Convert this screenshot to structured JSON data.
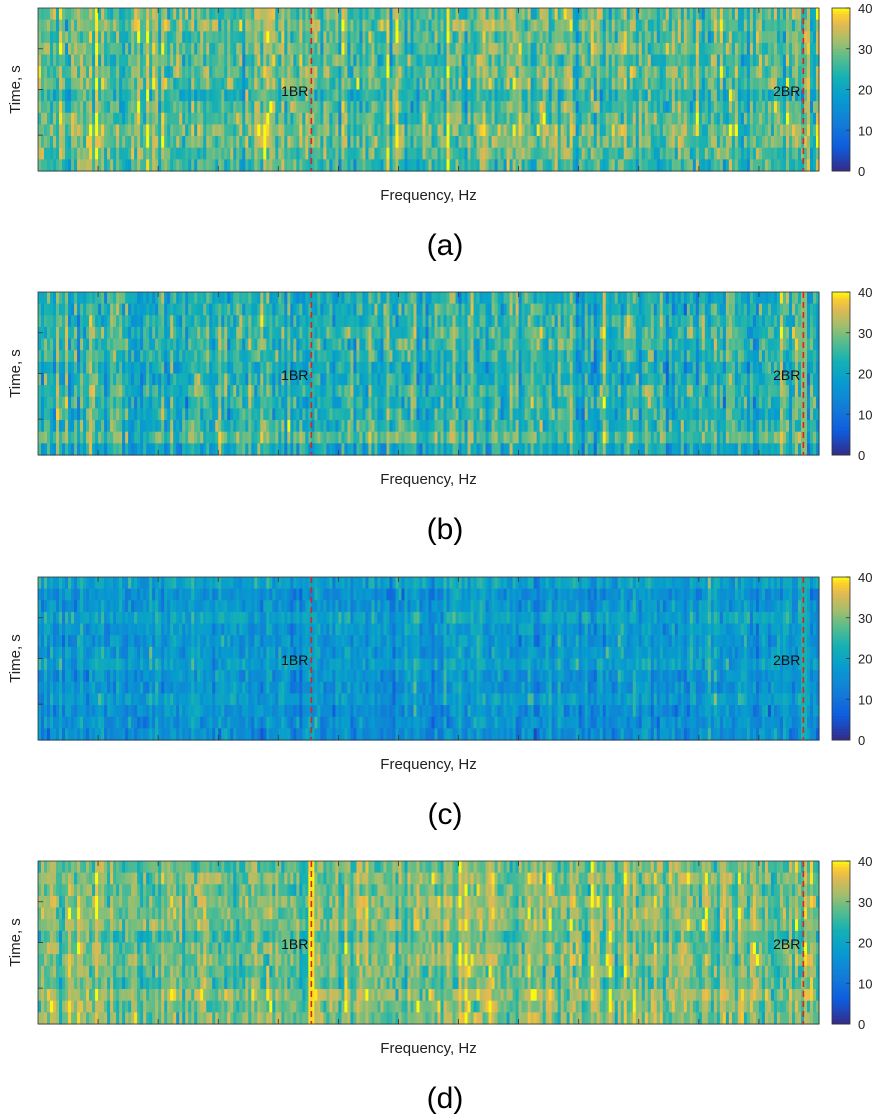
{
  "chart_data": [
    {
      "type": "heatmap",
      "panel": "(a)",
      "xlabel": "Frequency, Hz",
      "ylabel": "Time, s",
      "colorbar": {
        "ticks": [
          0,
          10,
          20,
          30,
          40
        ],
        "clim": [
          0,
          40
        ]
      },
      "markers": [
        {
          "label": "1BR",
          "position": 0.35
        },
        {
          "label": "2BR",
          "position": 0.98
        }
      ],
      "mean_level": 27,
      "spread": 6,
      "dominant_harmonic": {
        "marker": "1BR",
        "peak_level": null
      }
    },
    {
      "type": "heatmap",
      "panel": "(b)",
      "xlabel": "Frequency, Hz",
      "ylabel": "Time, s",
      "colorbar": {
        "ticks": [
          0,
          10,
          20,
          30,
          40
        ],
        "clim": [
          0,
          40
        ]
      },
      "markers": [
        {
          "label": "1BR",
          "position": 0.35
        },
        {
          "label": "2BR",
          "position": 0.98
        }
      ],
      "mean_level": 24,
      "spread": 6,
      "dominant_harmonic": {
        "marker": "2BR",
        "peak_level": 31
      }
    },
    {
      "type": "heatmap",
      "panel": "(c)",
      "xlabel": "Frequency, Hz",
      "ylabel": "Time, s",
      "colorbar": {
        "ticks": [
          0,
          10,
          20,
          30,
          40
        ],
        "clim": [
          0,
          40
        ]
      },
      "markers": [
        {
          "label": "1BR",
          "position": 0.35
        },
        {
          "label": "2BR",
          "position": 0.98
        }
      ],
      "mean_level": 17,
      "spread": 4.5,
      "dominant_harmonic": {
        "marker": "2BR",
        "peak_level": 24
      }
    },
    {
      "type": "heatmap",
      "panel": "(d)",
      "xlabel": "Frequency, Hz",
      "ylabel": "Time, s",
      "colorbar": {
        "ticks": [
          0,
          10,
          20,
          30,
          40
        ],
        "clim": [
          0,
          40
        ]
      },
      "markers": [
        {
          "label": "1BR",
          "position": 0.35
        },
        {
          "label": "2BR",
          "position": 0.98
        }
      ],
      "mean_level": 30,
      "spread": 5,
      "dominant_harmonic": {
        "marker": "1BR",
        "peak_level": 40
      }
    }
  ]
}
